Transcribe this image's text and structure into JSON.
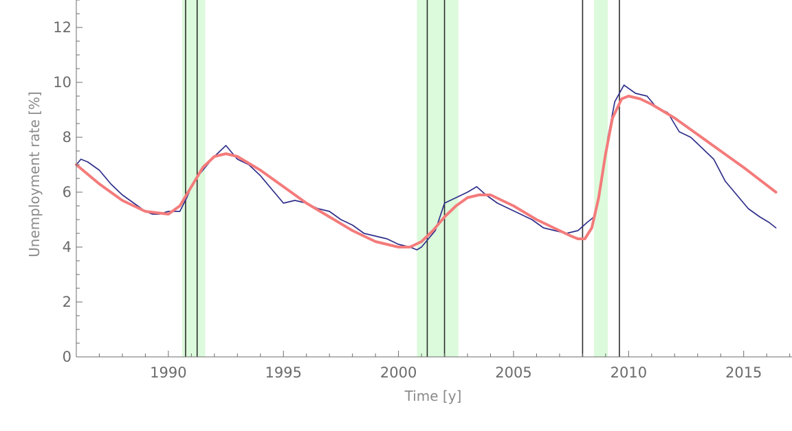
{
  "chart_data": {
    "type": "line",
    "title": "",
    "xlabel": "Time [y]",
    "ylabel": "Unemployment rate [%]",
    "xlim": [
      1986.0,
      2017.1
    ],
    "ylim": [
      0,
      13
    ],
    "x_ticks": [
      1990,
      1995,
      2000,
      2005,
      2010,
      2015
    ],
    "y_ticks": [
      0,
      2,
      4,
      6,
      8,
      10,
      12
    ],
    "grid": false,
    "legend": "none",
    "colors": {
      "data_line": "#2e2e8a",
      "fit_curve": "#f47b7b",
      "recession_band": "#dcfadc",
      "marker_line": "#2b2b2b",
      "axis": "#6b6b6b"
    },
    "shaded_periods": [
      {
        "start": 1990.6,
        "end": 1991.6
      },
      {
        "start": 2000.8,
        "end": 2002.6
      },
      {
        "start": 2008.5,
        "end": 2009.1
      }
    ],
    "vertical_markers": [
      1990.75,
      1991.25,
      2001.25,
      2002.0,
      2008.0,
      2009.6
    ],
    "series": [
      {
        "points": [
          [
            1986.0,
            7.0
          ],
          [
            1986.2,
            7.2
          ],
          [
            1986.5,
            7.1
          ],
          [
            1987.0,
            6.8
          ],
          [
            1987.5,
            6.3
          ],
          [
            1988.0,
            5.9
          ],
          [
            1988.5,
            5.6
          ],
          [
            1989.0,
            5.3
          ],
          [
            1989.3,
            5.2
          ],
          [
            1989.6,
            5.2
          ],
          [
            1990.0,
            5.3
          ],
          [
            1990.5,
            5.3
          ],
          [
            1990.8,
            5.8
          ],
          [
            1991.0,
            6.2
          ],
          [
            1991.3,
            6.6
          ],
          [
            1991.6,
            6.9
          ],
          [
            1992.0,
            7.3
          ],
          [
            1992.5,
            7.7
          ],
          [
            1993.0,
            7.2
          ],
          [
            1993.5,
            7.0
          ],
          [
            1994.0,
            6.6
          ],
          [
            1994.5,
            6.1
          ],
          [
            1995.0,
            5.6
          ],
          [
            1995.5,
            5.7
          ],
          [
            1996.0,
            5.6
          ],
          [
            1996.5,
            5.4
          ],
          [
            1997.0,
            5.3
          ],
          [
            1997.5,
            5.0
          ],
          [
            1998.0,
            4.8
          ],
          [
            1998.5,
            4.5
          ],
          [
            1999.0,
            4.4
          ],
          [
            1999.5,
            4.3
          ],
          [
            2000.0,
            4.1
          ],
          [
            2000.5,
            4.0
          ],
          [
            2000.8,
            3.9
          ],
          [
            2001.0,
            4.0
          ],
          [
            2001.3,
            4.3
          ],
          [
            2001.6,
            4.6
          ],
          [
            2002.0,
            5.6
          ],
          [
            2002.5,
            5.8
          ],
          [
            2003.0,
            6.0
          ],
          [
            2003.4,
            6.2
          ],
          [
            2003.8,
            5.9
          ],
          [
            2004.3,
            5.6
          ],
          [
            2004.8,
            5.4
          ],
          [
            2005.3,
            5.2
          ],
          [
            2005.8,
            5.0
          ],
          [
            2006.3,
            4.7
          ],
          [
            2006.8,
            4.6
          ],
          [
            2007.3,
            4.5
          ],
          [
            2007.8,
            4.6
          ],
          [
            2008.2,
            4.9
          ],
          [
            2008.5,
            5.1
          ],
          [
            2008.8,
            6.2
          ],
          [
            2009.1,
            8.0
          ],
          [
            2009.4,
            9.3
          ],
          [
            2009.8,
            9.9
          ],
          [
            2010.3,
            9.6
          ],
          [
            2010.8,
            9.5
          ],
          [
            2011.2,
            9.1
          ],
          [
            2011.7,
            8.9
          ],
          [
            2012.2,
            8.2
          ],
          [
            2012.7,
            8.0
          ],
          [
            2013.2,
            7.6
          ],
          [
            2013.7,
            7.2
          ],
          [
            2014.2,
            6.4
          ],
          [
            2014.7,
            5.9
          ],
          [
            2015.2,
            5.4
          ],
          [
            2015.7,
            5.1
          ],
          [
            2016.1,
            4.9
          ],
          [
            2016.4,
            4.7
          ]
        ]
      },
      {
        "points": [
          [
            1986.0,
            7.0
          ],
          [
            1987.0,
            6.3
          ],
          [
            1988.0,
            5.7
          ],
          [
            1989.0,
            5.3
          ],
          [
            1990.0,
            5.2
          ],
          [
            1990.5,
            5.5
          ],
          [
            1991.0,
            6.2
          ],
          [
            1991.5,
            6.9
          ],
          [
            1992.0,
            7.3
          ],
          [
            1992.5,
            7.4
          ],
          [
            1993.0,
            7.3
          ],
          [
            1994.0,
            6.8
          ],
          [
            1995.0,
            6.2
          ],
          [
            1996.0,
            5.6
          ],
          [
            1997.0,
            5.1
          ],
          [
            1998.0,
            4.6
          ],
          [
            1999.0,
            4.2
          ],
          [
            2000.0,
            4.0
          ],
          [
            2000.5,
            4.0
          ],
          [
            2001.0,
            4.2
          ],
          [
            2001.5,
            4.6
          ],
          [
            2002.0,
            5.1
          ],
          [
            2002.5,
            5.5
          ],
          [
            2003.0,
            5.8
          ],
          [
            2003.5,
            5.9
          ],
          [
            2004.0,
            5.9
          ],
          [
            2005.0,
            5.5
          ],
          [
            2006.0,
            5.0
          ],
          [
            2007.0,
            4.6
          ],
          [
            2007.5,
            4.4
          ],
          [
            2007.8,
            4.3
          ],
          [
            2008.1,
            4.3
          ],
          [
            2008.4,
            4.7
          ],
          [
            2008.7,
            5.8
          ],
          [
            2009.0,
            7.4
          ],
          [
            2009.3,
            8.7
          ],
          [
            2009.7,
            9.4
          ],
          [
            2010.0,
            9.5
          ],
          [
            2010.5,
            9.4
          ],
          [
            2011.0,
            9.2
          ],
          [
            2012.0,
            8.7
          ],
          [
            2013.0,
            8.1
          ],
          [
            2014.0,
            7.5
          ],
          [
            2015.0,
            6.9
          ],
          [
            2016.4,
            6.0
          ]
        ]
      }
    ]
  }
}
